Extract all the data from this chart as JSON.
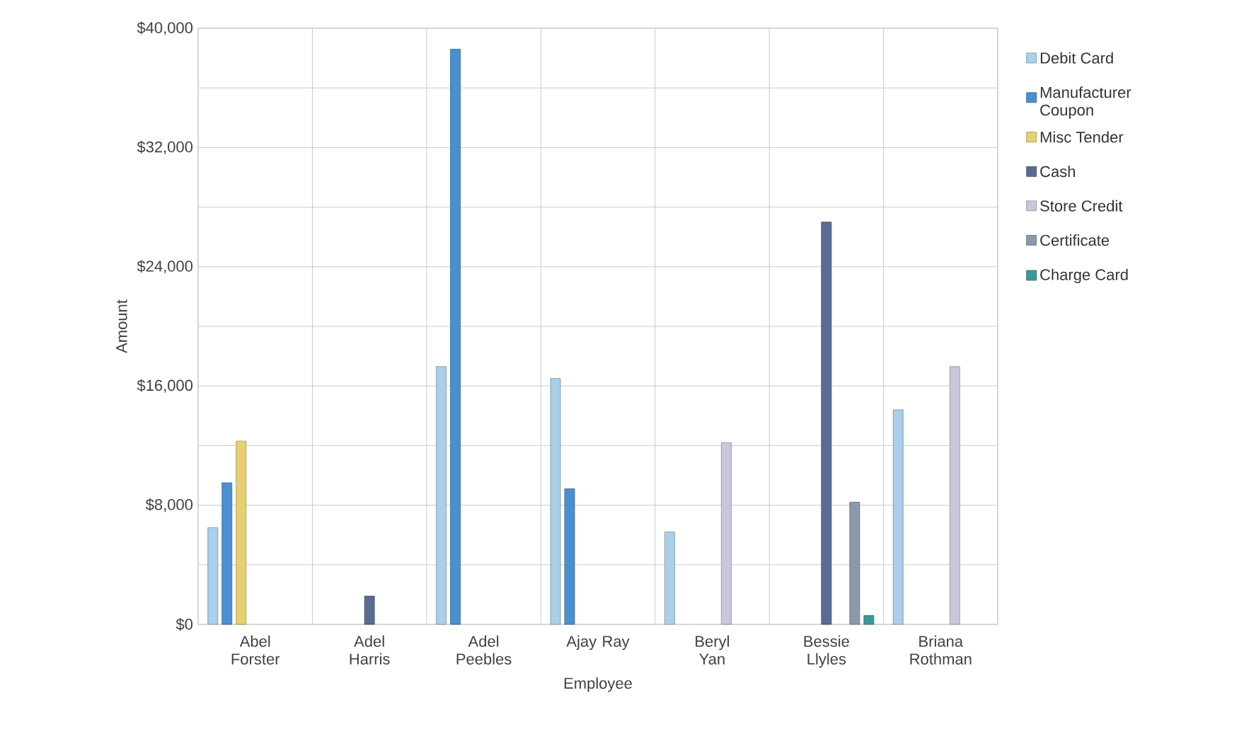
{
  "chart_data": {
    "type": "bar",
    "xlabel": "Employee",
    "ylabel": "Amount",
    "categories": [
      "Abel Forster",
      "Adel Harris",
      "Adel Peebles",
      "Ajay Ray",
      "Beryl Yan",
      "Bessie Llyles",
      "Briana Rothman"
    ],
    "series": [
      {
        "name": "Debit Card",
        "color": "#a9cfea",
        "values": [
          6500,
          null,
          17300,
          16500,
          6200,
          null,
          14400
        ]
      },
      {
        "name": "Manufacturer Coupon",
        "color": "#4a90d0",
        "values": [
          9500,
          null,
          38600,
          9100,
          null,
          null,
          null
        ]
      },
      {
        "name": "Misc Tender",
        "color": "#e8d070",
        "values": [
          12300,
          null,
          null,
          null,
          null,
          null,
          null
        ]
      },
      {
        "name": "Cash",
        "color": "#5a6c94",
        "values": [
          null,
          1900,
          null,
          null,
          null,
          27000,
          null
        ]
      },
      {
        "name": "Store Credit",
        "color": "#c8c8dc",
        "values": [
          null,
          null,
          null,
          null,
          12200,
          null,
          17300
        ]
      },
      {
        "name": "Certificate",
        "color": "#8c98ac",
        "values": [
          null,
          null,
          null,
          null,
          null,
          8200,
          null
        ]
      },
      {
        "name": "Charge Card",
        "color": "#3a9a98",
        "values": [
          null,
          null,
          null,
          null,
          null,
          600,
          null
        ]
      }
    ],
    "ylim": [
      0,
      40000
    ],
    "yticks": [
      {
        "value": 0,
        "label": "$0"
      },
      {
        "value": 4000,
        "label": null
      },
      {
        "value": 8000,
        "label": "$8,000"
      },
      {
        "value": 12000,
        "label": null
      },
      {
        "value": 16000,
        "label": "$16,000"
      },
      {
        "value": 20000,
        "label": null
      },
      {
        "value": 24000,
        "label": "$24,000"
      },
      {
        "value": 28000,
        "label": null
      },
      {
        "value": 32000,
        "label": "$32,000"
      },
      {
        "value": 36000,
        "label": null
      },
      {
        "value": 40000,
        "label": "$40,000"
      }
    ],
    "grid": true,
    "legend": "right"
  }
}
